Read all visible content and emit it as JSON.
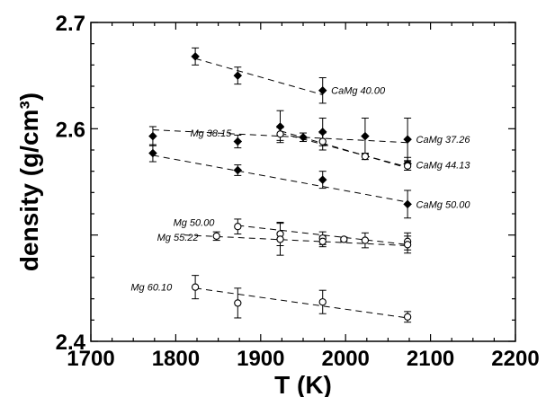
{
  "chart_data": {
    "type": "scatter",
    "xlabel": "T (K)",
    "ylabel": "density (g/cm³)",
    "xlim": [
      1700,
      2200
    ],
    "ylim": [
      2.4,
      2.7
    ],
    "xticks": [
      1700,
      1800,
      1900,
      2000,
      2100,
      2200
    ],
    "yticks": [
      2.4,
      2.5,
      2.6,
      2.7
    ],
    "xtick_labels": [
      "1700",
      "1800",
      "1900",
      "2000",
      "2100",
      "2200"
    ],
    "ytick_labels": [
      "2.4",
      "",
      "2.6",
      "2.7"
    ],
    "grid": false,
    "series": [
      {
        "name": "CaMg 40.00",
        "marker": "filled-diamond",
        "points": [
          {
            "x": 1823,
            "y": 2.668,
            "err": 0.008
          },
          {
            "x": 1873,
            "y": 2.65,
            "err": 0.008
          },
          {
            "x": 1973,
            "y": 2.636,
            "err": 0.012
          }
        ],
        "fit": [
          [
            1823,
            2.666
          ],
          [
            1973,
            2.632
          ]
        ],
        "label_pos": [
          1983,
          2.636
        ]
      },
      {
        "name": "CaMg 37.26",
        "marker": "filled-diamond",
        "points": [
          {
            "x": 1773,
            "y": 2.593,
            "err": 0.009
          },
          {
            "x": 1873,
            "y": 2.588,
            "err": 0.006
          },
          {
            "x": 1923,
            "y": 2.602,
            "err": 0.015
          },
          {
            "x": 1973,
            "y": 2.597,
            "err": 0.013
          },
          {
            "x": 2023,
            "y": 2.593,
            "err": 0.017
          },
          {
            "x": 2073,
            "y": 2.59,
            "err": 0.02
          }
        ],
        "fit": [
          [
            1773,
            2.599
          ],
          [
            2073,
            2.587
          ]
        ],
        "label_pos": [
          2083,
          2.59
        ]
      },
      {
        "name": "CaMg 44.13",
        "marker": "filled-diamond",
        "points": [
          {
            "x": 1950,
            "y": 2.592,
            "err": 0.004
          },
          {
            "x": 2073,
            "y": 2.567,
            "err": 0.006
          }
        ],
        "fit": [
          [
            1923,
            2.598
          ],
          [
            2073,
            2.563
          ]
        ],
        "label_pos": [
          2083,
          2.566
        ]
      },
      {
        "name": "CaMg 50.00",
        "marker": "filled-diamond",
        "points": [
          {
            "x": 1773,
            "y": 2.577,
            "err": 0.008
          },
          {
            "x": 1873,
            "y": 2.561,
            "err": 0.005
          },
          {
            "x": 1973,
            "y": 2.552,
            "err": 0.008
          },
          {
            "x": 2073,
            "y": 2.529,
            "err": 0.013
          }
        ],
        "fit": [
          [
            1773,
            2.575
          ],
          [
            2073,
            2.531
          ]
        ],
        "label_pos": [
          2083,
          2.529
        ]
      },
      {
        "name": "Mg 38.15",
        "marker": "open-circle",
        "points": [
          {
            "x": 1923,
            "y": 2.595,
            "err": 0.006
          },
          {
            "x": 1973,
            "y": 2.588,
            "err": 0.008
          },
          {
            "x": 2023,
            "y": 2.574,
            "err": 0.003
          },
          {
            "x": 2073,
            "y": 2.565,
            "err": 0.004
          }
        ],
        "fit": [
          [
            1923,
            2.596
          ],
          [
            2073,
            2.564
          ]
        ],
        "label_pos": [
          1817,
          2.596
        ]
      },
      {
        "name": "Mg 50.00",
        "marker": "open-circle",
        "points": [
          {
            "x": 1873,
            "y": 2.508,
            "err": 0.007
          },
          {
            "x": 1923,
            "y": 2.501,
            "err": 0.011
          },
          {
            "x": 1973,
            "y": 2.497,
            "err": 0.006
          },
          {
            "x": 2023,
            "y": 2.495,
            "err": 0.007
          },
          {
            "x": 2073,
            "y": 2.494,
            "err": 0.008
          }
        ],
        "fit": [
          [
            1873,
            2.509
          ],
          [
            2073,
            2.491
          ]
        ],
        "label_pos": [
          1797,
          2.512
        ]
      },
      {
        "name": "Mg 55.22",
        "marker": "open-circle",
        "points": [
          {
            "x": 1848,
            "y": 2.499,
            "err": 0.004
          },
          {
            "x": 1923,
            "y": 2.496,
            "err": 0.015
          },
          {
            "x": 1973,
            "y": 2.494,
            "err": 0.005
          },
          {
            "x": 1998,
            "y": 2.496,
            "err": 0.002
          },
          {
            "x": 2073,
            "y": 2.491,
            "err": 0.008
          }
        ],
        "fit": [
          [
            1810,
            2.5
          ],
          [
            2073,
            2.49
          ]
        ],
        "label_pos": [
          1778,
          2.498
        ]
      },
      {
        "name": "Mg 60.10",
        "marker": "open-circle",
        "points": [
          {
            "x": 1823,
            "y": 2.451,
            "err": 0.011
          },
          {
            "x": 1873,
            "y": 2.436,
            "err": 0.014
          },
          {
            "x": 1973,
            "y": 2.437,
            "err": 0.011
          },
          {
            "x": 2073,
            "y": 2.423,
            "err": 0.005
          }
        ],
        "fit": [
          [
            1823,
            2.45
          ],
          [
            2073,
            2.422
          ]
        ],
        "label_pos": [
          1747,
          2.451
        ]
      }
    ]
  }
}
